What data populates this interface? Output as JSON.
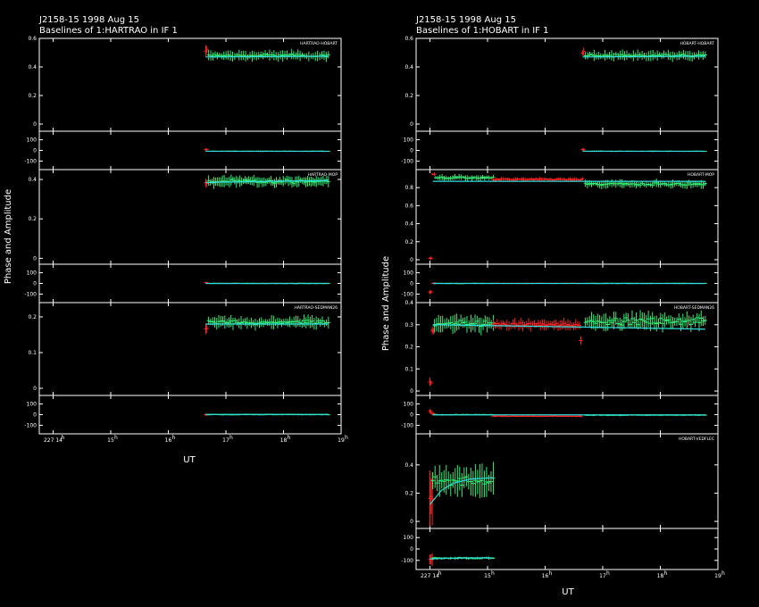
{
  "colors": {
    "background": "#000000",
    "frame": "#ffffff",
    "data_green": "#33ee77",
    "data_red": "#ff2222",
    "model_cyan": "#33dddd"
  },
  "chart_data": [
    {
      "type": "scatter",
      "title": "J2158-15  1998 Aug 15",
      "subtitle": "Baselines of 1:HARTRAO in IF 1",
      "ylabel": "Phase and Amplitude",
      "xlabel": "UT",
      "x_ticks": [
        "227 14",
        "15",
        "16",
        "17",
        "18",
        "19"
      ],
      "x_tick_hours": [
        14,
        15,
        16,
        17,
        18,
        19
      ],
      "xlim_hours": [
        13.76,
        19.0
      ],
      "baselines": [
        {
          "name": "HARTRAO-HOBART",
          "amp_ylim": [
            -0.05,
            0.6
          ],
          "amp_ticks": [
            "0",
            "0.2",
            "0.4",
            "0.6"
          ],
          "amp_tick_values": [
            0,
            0.2,
            0.4,
            0.6
          ],
          "phase_ylim": [
            -180,
            180
          ],
          "phase_ticks": [
            "-100",
            "0",
            "100"
          ],
          "phase_tick_values": [
            -100,
            0,
            100
          ],
          "segments": [
            {
              "color": "red",
              "t_start": 16.65,
              "t_end": 16.67,
              "amp_mean": 0.51,
              "amp_jitter": 0.02,
              "amp_err": 0.03,
              "phase_mean": 8,
              "phase_jitter": 3,
              "phase_err": 12,
              "n": 2
            },
            {
              "color": "green",
              "t_start": 16.7,
              "t_end": 18.78,
              "amp_mean": 0.48,
              "amp_jitter": 0.015,
              "amp_err": 0.028,
              "phase_mean": -8,
              "phase_jitter": 2,
              "phase_err": 5,
              "n": 56
            }
          ],
          "model": [
            {
              "t": 16.65,
              "amp": 0.47,
              "phase": -8
            },
            {
              "t": 18.78,
              "amp": 0.475,
              "phase": -8
            }
          ]
        },
        {
          "name": "HARTRAO-MOP",
          "amp_ylim": [
            -0.03,
            0.45
          ],
          "amp_ticks": [
            "0",
            "0.2",
            "0.4"
          ],
          "amp_tick_values": [
            0,
            0.2,
            0.4
          ],
          "phase_ylim": [
            -180,
            180
          ],
          "phase_ticks": [
            "-100",
            "0",
            "100"
          ],
          "phase_tick_values": [
            -100,
            0,
            100
          ],
          "segments": [
            {
              "color": "red",
              "t_start": 16.65,
              "t_end": 16.67,
              "amp_mean": 0.38,
              "amp_jitter": 0.01,
              "amp_err": 0.02,
              "phase_mean": 5,
              "phase_jitter": 3,
              "phase_err": 10,
              "n": 2
            },
            {
              "color": "green",
              "t_start": 16.7,
              "t_end": 18.78,
              "amp_mean": 0.39,
              "amp_jitter": 0.012,
              "amp_err": 0.022,
              "phase_mean": 0,
              "phase_jitter": 2,
              "phase_err": 5,
              "n": 70
            }
          ],
          "model": [
            {
              "t": 16.65,
              "amp": 0.385,
              "phase": 0
            },
            {
              "t": 18.78,
              "amp": 0.395,
              "phase": 0
            }
          ]
        },
        {
          "name": "HARTRAO-SEDMAN26",
          "amp_ylim": [
            -0.02,
            0.24
          ],
          "amp_ticks": [
            "0",
            "0.1",
            "0.2"
          ],
          "amp_tick_values": [
            0,
            0.1,
            0.2
          ],
          "phase_ylim": [
            -180,
            180
          ],
          "phase_ticks": [
            "-100",
            "0",
            "100"
          ],
          "phase_tick_values": [
            -100,
            0,
            100
          ],
          "segments": [
            {
              "color": "red",
              "t_start": 16.65,
              "t_end": 16.67,
              "amp_mean": 0.17,
              "amp_jitter": 0.005,
              "amp_err": 0.012,
              "phase_mean": 0,
              "phase_jitter": 3,
              "phase_err": 10,
              "n": 2
            },
            {
              "color": "green",
              "t_start": 16.7,
              "t_end": 18.78,
              "amp_mean": 0.185,
              "amp_jitter": 0.008,
              "amp_err": 0.014,
              "phase_mean": 0,
              "phase_jitter": 3,
              "phase_err": 6,
              "n": 60
            }
          ],
          "model": [
            {
              "t": 16.65,
              "amp": 0.18,
              "phase": 2
            },
            {
              "t": 18.78,
              "amp": 0.18,
              "phase": 2
            }
          ]
        }
      ]
    },
    {
      "type": "scatter",
      "title": "J2158-15  1998 Aug 15",
      "subtitle": "Baselines of 1:HOBART in IF 1",
      "ylabel": "Phase and Amplitude",
      "xlabel": "UT",
      "x_ticks": [
        "227 14",
        "15",
        "16",
        "17",
        "18",
        "19"
      ],
      "x_tick_hours": [
        14,
        15,
        16,
        17,
        18,
        19
      ],
      "xlim_hours": [
        13.76,
        19.0
      ],
      "baselines": [
        {
          "name": "HOBART-HOBART",
          "amp_ylim": [
            -0.05,
            0.6
          ],
          "amp_ticks": [
            "0",
            "0.2",
            "0.4",
            "0.6"
          ],
          "amp_tick_values": [
            0,
            0.2,
            0.4,
            0.6
          ],
          "phase_ylim": [
            -180,
            180
          ],
          "phase_ticks": [
            "-100",
            "0",
            "100"
          ],
          "phase_tick_values": [
            -100,
            0,
            100
          ],
          "segments": [
            {
              "color": "red",
              "t_start": 16.65,
              "t_end": 16.67,
              "amp_mean": 0.51,
              "amp_jitter": 0.02,
              "amp_err": 0.03,
              "phase_mean": 8,
              "phase_jitter": 3,
              "phase_err": 12,
              "n": 2
            },
            {
              "color": "green",
              "t_start": 16.7,
              "t_end": 18.78,
              "amp_mean": 0.48,
              "amp_jitter": 0.015,
              "amp_err": 0.028,
              "phase_mean": -8,
              "phase_jitter": 2,
              "phase_err": 5,
              "n": 56
            }
          ],
          "model": [
            {
              "t": 16.65,
              "amp": 0.47,
              "phase": -8
            },
            {
              "t": 18.78,
              "amp": 0.475,
              "phase": -8
            }
          ]
        },
        {
          "name": "HOBART-MOP",
          "amp_ylim": [
            -0.05,
            1.0
          ],
          "amp_ticks": [
            "0",
            "0.2",
            "0.4",
            "0.6",
            "0.8"
          ],
          "amp_tick_values": [
            0,
            0.2,
            0.4,
            0.6,
            0.8
          ],
          "phase_ylim": [
            -180,
            180
          ],
          "phase_ticks": [
            "-100",
            "0",
            "100"
          ],
          "phase_tick_values": [
            -100,
            0,
            100
          ],
          "segments": [
            {
              "color": "red",
              "t_start": 14.0,
              "t_end": 14.02,
              "amp_mean": 0.02,
              "amp_jitter": 0.01,
              "amp_err": 0.02,
              "phase_mean": -80,
              "phase_jitter": 10,
              "phase_err": 25,
              "n": 2
            },
            {
              "color": "red",
              "t_start": 14.05,
              "t_end": 14.08,
              "amp_mean": 0.95,
              "amp_jitter": 0.01,
              "amp_err": 0.02,
              "phase_mean": 0,
              "phase_jitter": 3,
              "phase_err": 8,
              "n": 2
            },
            {
              "color": "green",
              "t_start": 14.1,
              "t_end": 15.1,
              "amp_mean": 0.91,
              "amp_jitter": 0.015,
              "amp_err": 0.025,
              "phase_mean": 0,
              "phase_jitter": 2,
              "phase_err": 5,
              "n": 28
            },
            {
              "color": "red",
              "t_start": 15.1,
              "t_end": 16.65,
              "amp_mean": 0.89,
              "amp_jitter": 0.012,
              "amp_err": 0.018,
              "phase_mean": 0,
              "phase_jitter": 2,
              "phase_err": 5,
              "n": 45
            },
            {
              "color": "green",
              "t_start": 16.7,
              "t_end": 18.78,
              "amp_mean": 0.84,
              "amp_jitter": 0.02,
              "amp_err": 0.035,
              "phase_mean": 0,
              "phase_jitter": 2,
              "phase_err": 5,
              "n": 60
            }
          ],
          "model": [
            {
              "t": 14.05,
              "amp": 0.87,
              "phase": 0
            },
            {
              "t": 18.78,
              "amp": 0.87,
              "phase": 0
            }
          ]
        },
        {
          "name": "HOBART-SEDMAN26",
          "amp_ylim": [
            -0.02,
            0.4
          ],
          "amp_ticks": [
            "0",
            "0.1",
            "0.2",
            "0.3",
            "0.4"
          ],
          "amp_tick_values": [
            0,
            0.1,
            0.2,
            0.3,
            0.4
          ],
          "phase_ylim": [
            -180,
            180
          ],
          "phase_ticks": [
            "-100",
            "0",
            "100"
          ],
          "phase_tick_values": [
            -100,
            0,
            100
          ],
          "segments": [
            {
              "color": "red",
              "t_start": 14.0,
              "t_end": 14.02,
              "amp_mean": 0.04,
              "amp_jitter": 0.005,
              "amp_err": 0.015,
              "phase_mean": 30,
              "phase_jitter": 5,
              "phase_err": 20,
              "n": 2
            },
            {
              "color": "red",
              "t_start": 14.04,
              "t_end": 14.06,
              "amp_mean": 0.27,
              "amp_jitter": 0.01,
              "amp_err": 0.02,
              "phase_mean": 5,
              "phase_jitter": 4,
              "phase_err": 10,
              "n": 2
            },
            {
              "color": "green",
              "t_start": 14.08,
              "t_end": 15.1,
              "amp_mean": 0.305,
              "amp_jitter": 0.02,
              "amp_err": 0.03,
              "phase_mean": 0,
              "phase_jitter": 3,
              "phase_err": 6,
              "n": 30
            },
            {
              "color": "red",
              "t_start": 15.1,
              "t_end": 16.6,
              "amp_mean": 0.3,
              "amp_jitter": 0.012,
              "amp_err": 0.018,
              "phase_mean": -15,
              "phase_jitter": 3,
              "phase_err": 6,
              "n": 45
            },
            {
              "color": "red",
              "t_start": 16.62,
              "t_end": 16.64,
              "amp_mean": 0.23,
              "amp_jitter": 0.005,
              "amp_err": 0.015,
              "phase_mean": -15,
              "phase_jitter": 3,
              "phase_err": 8,
              "n": 1
            },
            {
              "color": "green",
              "t_start": 16.7,
              "t_end": 18.78,
              "amp_mean": 0.315,
              "amp_jitter": 0.02,
              "amp_err": 0.03,
              "phase_mean": -5,
              "phase_jitter": 3,
              "phase_err": 6,
              "n": 60
            }
          ],
          "model": [
            {
              "t": 14.05,
              "amp": 0.3,
              "phase": -2
            },
            {
              "t": 16.5,
              "amp": 0.29,
              "phase": -2
            },
            {
              "t": 18.78,
              "amp": 0.28,
              "phase": -2
            }
          ]
        },
        {
          "name": "HOBART-VEDFLEC",
          "amp_ylim": [
            -0.05,
            0.62
          ],
          "amp_ticks": [
            "0",
            "0.2",
            "0.4"
          ],
          "amp_tick_values": [
            0,
            0.2,
            0.4
          ],
          "phase_ylim": [
            -180,
            180
          ],
          "phase_ticks": [
            "-100",
            "0",
            "100"
          ],
          "phase_tick_values": [
            -100,
            0,
            100
          ],
          "segments": [
            {
              "color": "red",
              "t_start": 14.0,
              "t_end": 14.04,
              "amp_mean": 0.18,
              "amp_jitter": 0.04,
              "amp_err": 0.2,
              "phase_mean": -95,
              "phase_jitter": 15,
              "phase_err": 40,
              "n": 3
            },
            {
              "color": "green",
              "t_start": 14.05,
              "t_end": 15.1,
              "amp_mean": 0.29,
              "amp_jitter": 0.05,
              "amp_err": 0.09,
              "phase_mean": -80,
              "phase_jitter": 8,
              "phase_err": 10,
              "n": 28
            }
          ],
          "model": [
            {
              "t": 14.0,
              "amp": 0.12,
              "phase": -88
            },
            {
              "t": 14.2,
              "amp": 0.22,
              "phase": -82
            },
            {
              "t": 14.4,
              "amp": 0.27,
              "phase": -80
            },
            {
              "t": 14.7,
              "amp": 0.3,
              "phase": -78
            },
            {
              "t": 15.1,
              "amp": 0.31,
              "phase": -78
            }
          ]
        }
      ]
    }
  ]
}
